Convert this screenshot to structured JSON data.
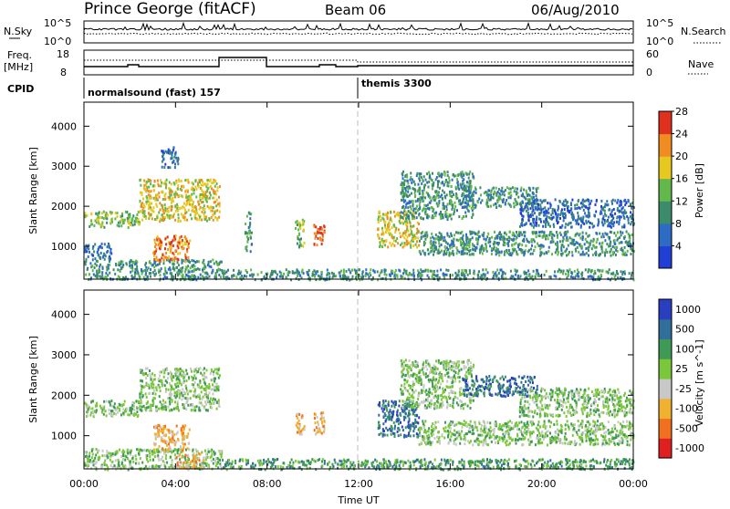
{
  "header": {
    "station": "Prince George (fitACF)",
    "beam": "Beam 06",
    "date": "06/Aug/2010"
  },
  "panels": {
    "nsky_label": "N.Sky",
    "nsky_ticks": [
      "10^5",
      "10^0"
    ],
    "nsearch_label": "N.Search",
    "nsearch_ticks": [
      "10^5",
      "10^0"
    ],
    "freq_label_1": "Freq.",
    "freq_label_2": "[MHz]",
    "freq_ticks": [
      "18",
      "8"
    ],
    "nave_label": "Nave",
    "nave_ticks": [
      "60",
      "0"
    ],
    "cpid_label": "CPID",
    "cpid_segments": [
      {
        "name": "normalsound (fast) 157",
        "start_hour": 0,
        "end_hour": 12
      },
      {
        "name": "themis 3300",
        "start_hour": 12,
        "end_hour": 24
      }
    ]
  },
  "chart_data": [
    {
      "type": "heatmap",
      "title": "",
      "xlabel": "Time UT",
      "ylabel": "Slant Range [km]",
      "xlim": [
        0,
        24
      ],
      "ylim": [
        180,
        4600
      ],
      "x_ticks": [
        "00:00",
        "04:00",
        "08:00",
        "12:00",
        "16:00",
        "20:00",
        "00:00"
      ],
      "y_ticks": [
        1000,
        2000,
        3000,
        4000
      ],
      "colorbar": {
        "label": "Power [dB]",
        "ticks": [
          "4",
          "8",
          "12",
          "16",
          "20",
          "24",
          "28"
        ],
        "colors": [
          "#1f3fd6",
          "#2e6bc4",
          "#3d8b6d",
          "#62b84a",
          "#e6c820",
          "#f08c20",
          "#e0301e"
        ]
      },
      "series": [
        {
          "start_hour": 0.0,
          "end_hour": 2.4,
          "range_min_km": 1500,
          "range_max_km": 1900,
          "power_db": 14
        },
        {
          "start_hour": 2.4,
          "end_hour": 5.9,
          "range_min_km": 1650,
          "range_max_km": 2700,
          "power_db": 18
        },
        {
          "start_hour": 0.0,
          "end_hour": 1.2,
          "range_min_km": 700,
          "range_max_km": 1100,
          "power_db": 9
        },
        {
          "start_hour": 0.0,
          "end_hour": 6.0,
          "range_min_km": 190,
          "range_max_km": 700,
          "power_db": 12
        },
        {
          "start_hour": 3.0,
          "end_hour": 4.6,
          "range_min_km": 650,
          "range_max_km": 1300,
          "power_db": 22
        },
        {
          "start_hour": 3.3,
          "end_hour": 4.1,
          "range_min_km": 3000,
          "range_max_km": 3500,
          "power_db": 7
        },
        {
          "start_hour": 7.0,
          "end_hour": 7.3,
          "range_min_km": 900,
          "range_max_km": 1900,
          "power_db": 12
        },
        {
          "start_hour": 9.2,
          "end_hour": 9.6,
          "range_min_km": 1000,
          "range_max_km": 1700,
          "power_db": 16
        },
        {
          "start_hour": 10.0,
          "end_hour": 10.5,
          "range_min_km": 1000,
          "range_max_km": 1600,
          "power_db": 27
        },
        {
          "start_hour": 12.8,
          "end_hour": 14.6,
          "range_min_km": 1000,
          "range_max_km": 1900,
          "power_db": 18
        },
        {
          "start_hour": 13.8,
          "end_hour": 17.0,
          "range_min_km": 1700,
          "range_max_km": 2900,
          "power_db": 11
        },
        {
          "start_hour": 14.6,
          "end_hour": 24.0,
          "range_min_km": 800,
          "range_max_km": 1400,
          "power_db": 13
        },
        {
          "start_hour": 16.5,
          "end_hour": 19.8,
          "range_min_km": 2000,
          "range_max_km": 2500,
          "power_db": 12
        },
        {
          "start_hour": 19.0,
          "end_hour": 24.0,
          "range_min_km": 1500,
          "range_max_km": 2200,
          "power_db": 8
        },
        {
          "start_hour": 6.0,
          "end_hour": 24.0,
          "range_min_km": 190,
          "range_max_km": 450,
          "power_db": 10
        }
      ]
    },
    {
      "type": "heatmap",
      "title": "",
      "xlabel": "Time UT",
      "ylabel": "Slant Range [km]",
      "xlim": [
        0,
        24
      ],
      "ylim": [
        180,
        4600
      ],
      "x_ticks": [
        "00:00",
        "04:00",
        "08:00",
        "12:00",
        "16:00",
        "20:00",
        "00:00"
      ],
      "y_ticks": [
        1000,
        2000,
        3000,
        4000
      ],
      "colorbar": {
        "label": "Velocity [m s^-1]",
        "ticks": [
          "1000",
          "500",
          "100",
          "25",
          "-25",
          "-100",
          "-500",
          "-1000"
        ],
        "colors": [
          "#2a3fc0",
          "#2f6f9a",
          "#3f9a55",
          "#7ac83a",
          "#c8c8c8",
          "#f0b030",
          "#f07020",
          "#e02020"
        ]
      },
      "series": [
        {
          "start_hour": 0.0,
          "end_hour": 2.4,
          "range_min_km": 1500,
          "range_max_km": 1900,
          "velocity_ms": 0
        },
        {
          "start_hour": 2.4,
          "end_hour": 5.9,
          "range_min_km": 1650,
          "range_max_km": 2700,
          "velocity_ms": 0
        },
        {
          "start_hour": 0.0,
          "end_hour": 6.0,
          "range_min_km": 190,
          "range_max_km": 700,
          "velocity_ms": 0
        },
        {
          "start_hour": 3.0,
          "end_hour": 4.6,
          "range_min_km": 650,
          "range_max_km": 1300,
          "velocity_ms": -400
        },
        {
          "start_hour": 4.0,
          "end_hour": 5.2,
          "range_min_km": 200,
          "range_max_km": 600,
          "velocity_ms": -400
        },
        {
          "start_hour": 9.2,
          "end_hour": 9.6,
          "range_min_km": 1000,
          "range_max_km": 1600,
          "velocity_ms": -200
        },
        {
          "start_hour": 10.0,
          "end_hour": 10.5,
          "range_min_km": 1000,
          "range_max_km": 1600,
          "velocity_ms": -150
        },
        {
          "start_hour": 12.8,
          "end_hour": 14.6,
          "range_min_km": 1000,
          "range_max_km": 1900,
          "velocity_ms": 300
        },
        {
          "start_hour": 13.8,
          "end_hour": 17.0,
          "range_min_km": 1700,
          "range_max_km": 2900,
          "velocity_ms": 0
        },
        {
          "start_hour": 14.6,
          "end_hour": 24.0,
          "range_min_km": 800,
          "range_max_km": 1400,
          "velocity_ms": 0
        },
        {
          "start_hour": 16.5,
          "end_hour": 19.8,
          "range_min_km": 2000,
          "range_max_km": 2500,
          "velocity_ms": 200
        },
        {
          "start_hour": 19.0,
          "end_hour": 24.0,
          "range_min_km": 1500,
          "range_max_km": 2200,
          "velocity_ms": 0
        },
        {
          "start_hour": 6.0,
          "end_hour": 24.0,
          "range_min_km": 190,
          "range_max_km": 450,
          "velocity_ms": 60
        }
      ]
    }
  ]
}
